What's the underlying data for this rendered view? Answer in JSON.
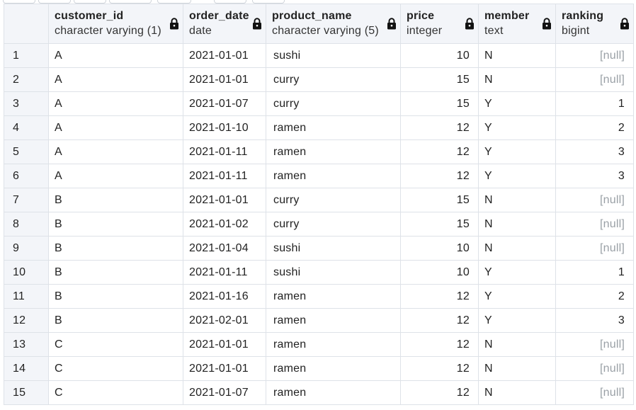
{
  "grid": {
    "columns": [
      {
        "name": "customer_id",
        "type": "character varying (1)"
      },
      {
        "name": "order_date",
        "type": "date"
      },
      {
        "name": "product_name",
        "type": "character varying (5)"
      },
      {
        "name": "price",
        "type": "integer"
      },
      {
        "name": "member",
        "type": "text"
      },
      {
        "name": "ranking",
        "type": "bigint"
      }
    ],
    "null_text": "[null]",
    "rows": [
      {
        "idx": "1",
        "customer_id": "A",
        "order_date": "2021-01-01",
        "product_name": "sushi",
        "price": "10",
        "member": "N",
        "ranking": "[null]"
      },
      {
        "idx": "2",
        "customer_id": "A",
        "order_date": "2021-01-01",
        "product_name": "curry",
        "price": "15",
        "member": "N",
        "ranking": "[null]"
      },
      {
        "idx": "3",
        "customer_id": "A",
        "order_date": "2021-01-07",
        "product_name": "curry",
        "price": "15",
        "member": "Y",
        "ranking": "1"
      },
      {
        "idx": "4",
        "customer_id": "A",
        "order_date": "2021-01-10",
        "product_name": "ramen",
        "price": "12",
        "member": "Y",
        "ranking": "2"
      },
      {
        "idx": "5",
        "customer_id": "A",
        "order_date": "2021-01-11",
        "product_name": "ramen",
        "price": "12",
        "member": "Y",
        "ranking": "3"
      },
      {
        "idx": "6",
        "customer_id": "A",
        "order_date": "2021-01-11",
        "product_name": "ramen",
        "price": "12",
        "member": "Y",
        "ranking": "3"
      },
      {
        "idx": "7",
        "customer_id": "B",
        "order_date": "2021-01-01",
        "product_name": "curry",
        "price": "15",
        "member": "N",
        "ranking": "[null]"
      },
      {
        "idx": "8",
        "customer_id": "B",
        "order_date": "2021-01-02",
        "product_name": "curry",
        "price": "15",
        "member": "N",
        "ranking": "[null]"
      },
      {
        "idx": "9",
        "customer_id": "B",
        "order_date": "2021-01-04",
        "product_name": "sushi",
        "price": "10",
        "member": "N",
        "ranking": "[null]"
      },
      {
        "idx": "10",
        "customer_id": "B",
        "order_date": "2021-01-11",
        "product_name": "sushi",
        "price": "10",
        "member": "Y",
        "ranking": "1"
      },
      {
        "idx": "11",
        "customer_id": "B",
        "order_date": "2021-01-16",
        "product_name": "ramen",
        "price": "12",
        "member": "Y",
        "ranking": "2"
      },
      {
        "idx": "12",
        "customer_id": "B",
        "order_date": "2021-02-01",
        "product_name": "ramen",
        "price": "12",
        "member": "Y",
        "ranking": "3"
      },
      {
        "idx": "13",
        "customer_id": "C",
        "order_date": "2021-01-01",
        "product_name": "ramen",
        "price": "12",
        "member": "N",
        "ranking": "[null]"
      },
      {
        "idx": "14",
        "customer_id": "C",
        "order_date": "2021-01-01",
        "product_name": "ramen",
        "price": "12",
        "member": "N",
        "ranking": "[null]"
      },
      {
        "idx": "15",
        "customer_id": "C",
        "order_date": "2021-01-07",
        "product_name": "ramen",
        "price": "12",
        "member": "N",
        "ranking": "[null]"
      }
    ]
  },
  "icons": {
    "column_lock": "lock-icon"
  },
  "colors": {
    "header_bg": "#f3f5f9",
    "border": "#dee2e8",
    "null_text": "#9aa0a6",
    "text": "#222222"
  }
}
